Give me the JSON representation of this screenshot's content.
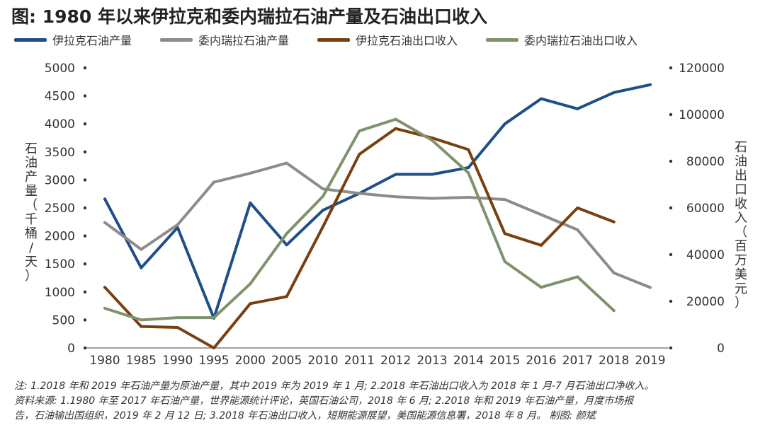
{
  "title": "图: 1980 年以来伊拉克和委内瑞拉石油产量及石油出口收入",
  "chart_data": {
    "type": "line",
    "x": [
      "1980",
      "1985",
      "1990",
      "1995",
      "2000",
      "2005",
      "2010",
      "2011",
      "2012",
      "2013",
      "2014",
      "2015",
      "2016",
      "2017",
      "2018",
      "2019"
    ],
    "ylabel_left": "石油产量（千桶/天）",
    "ylabel_right": "石油出口收入（百万美元）",
    "ylim_left": [
      0,
      5000
    ],
    "ylim_right": [
      0,
      120000
    ],
    "yticks_left": [
      "0",
      "500",
      "1000",
      "1500",
      "2000",
      "2500",
      "3000",
      "3500",
      "4000",
      "4500",
      "5000"
    ],
    "yticks_right": [
      "0",
      "20000",
      "40000",
      "60000",
      "80000",
      "100000",
      "120000"
    ],
    "grid": false,
    "legend_position": "top",
    "series": [
      {
        "name": "伊拉克石油产量",
        "axis": "left",
        "color": "#1f4e89",
        "values": [
          2660,
          1430,
          2150,
          530,
          2590,
          1840,
          2460,
          2760,
          3100,
          3100,
          3220,
          4000,
          4450,
          4270,
          4560,
          4700
        ]
      },
      {
        "name": "委内瑞拉石油产量",
        "axis": "left",
        "color": "#8c8c8c",
        "values": [
          2240,
          1760,
          2200,
          2960,
          3120,
          3300,
          2840,
          2760,
          2700,
          2670,
          2690,
          2650,
          2380,
          2110,
          1340,
          1080
        ]
      },
      {
        "name": "伊拉克石油出口收入",
        "axis": "right",
        "color": "#7a3f0f",
        "values": [
          26000,
          9200,
          8800,
          0,
          19000,
          22000,
          52000,
          83000,
          94000,
          90000,
          85000,
          49000,
          44000,
          60000,
          54000,
          null
        ]
      },
      {
        "name": "委内瑞拉石油出口收入",
        "axis": "right",
        "color": "#7f926c",
        "values": [
          17000,
          12000,
          13000,
          13000,
          27500,
          49000,
          65000,
          93000,
          98000,
          89000,
          75000,
          37000,
          26000,
          30500,
          16000,
          null
        ]
      }
    ]
  },
  "notes": [
    "注: 1.2018 年和 2019 年石油产量为原油产量，其中 2019 年为 2019 年 1 月; 2.2018 年石油出口收入为 2018 年 1 月-7 月石油出口净收入。",
    "资料来源: 1.1980 年至 2017 年石油产量，世界能源统计评论，英国石油公司，2018 年 6 月; 2.2018 年和 2019 年石油产量，月度市场报",
    "告，石油输出国组织，2019 年 2 月 12 日; 3.2018 年石油出口收入，短期能源展望，美国能源信息署，2018 年 8 月。      制图: 颜斌"
  ]
}
